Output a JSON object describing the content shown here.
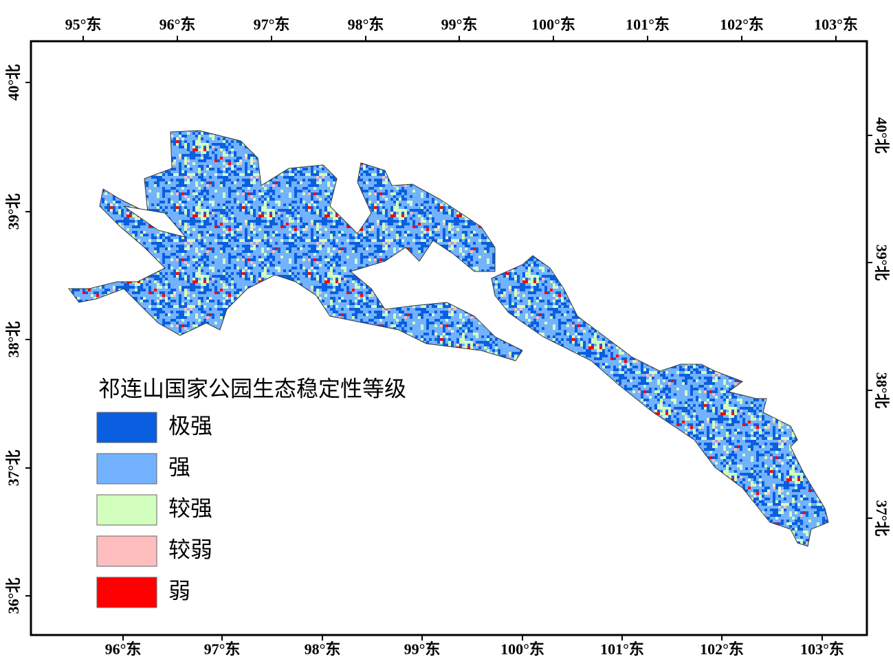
{
  "map": {
    "axes": {
      "top": [
        "95°东",
        "96°东",
        "97°东",
        "98°东",
        "99°东",
        "100°东",
        "101°东",
        "102°东",
        "103°东"
      ],
      "bottom": [
        "96°东",
        "97°东",
        "98°东",
        "99°东",
        "100°东",
        "101°东",
        "102°东",
        "103°东"
      ],
      "left": [
        "40°北",
        "39°北",
        "38°北",
        "37°北",
        "36°北"
      ],
      "right": [
        "40°北",
        "39°北",
        "38°北",
        "37°北"
      ]
    },
    "legend": {
      "title": "祁连山国家公园生态稳定性等级",
      "items": [
        {
          "label": "极强",
          "color": "#0a5fe0"
        },
        {
          "label": "强",
          "color": "#73b2ff"
        },
        {
          "label": "较强",
          "color": "#d3ffbe"
        },
        {
          "label": "较弱",
          "color": "#ffbebe"
        },
        {
          "label": "弱",
          "color": "#ff0000"
        }
      ]
    }
  }
}
